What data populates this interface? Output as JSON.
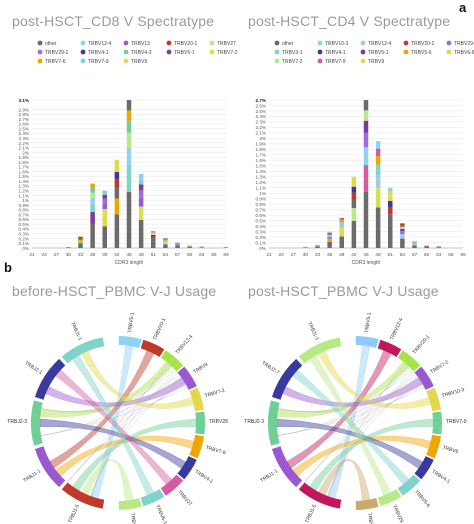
{
  "panel_a": "a",
  "panel_b": "b",
  "titles": {
    "cd8": "post-HSCT_CD8 V Spectratype",
    "cd4": "post-HSCT_CD4 V Spectratype",
    "pre": "before-HSCT_PBMC V-J Usage",
    "post": "post-HSCT_PBMC V-J Usage"
  },
  "chart_data": [
    {
      "type": "bar",
      "stacked": true,
      "title": "post-HSCT_CD8 V Spectratype",
      "xlabel": "CDR3 length",
      "ylabel": "",
      "categories": [
        "21",
        "24",
        "27",
        "30",
        "33",
        "36",
        "39",
        "42",
        "45",
        "48",
        "51",
        "54",
        "57",
        "60",
        "63",
        "66",
        "69"
      ],
      "x_ticks_shown": [
        "21",
        "24",
        "27",
        "30",
        "33",
        "36",
        "39",
        "42",
        "45",
        "48",
        "51",
        "54",
        "57",
        "60",
        "63",
        "66",
        "69"
      ],
      "y_ticks": [
        "0%",
        "0.1%",
        "0.2%",
        "0.3%",
        "0.4%",
        "0.5%",
        "0.6%",
        "0.7%",
        "0.8%",
        "0.9%",
        "1%",
        "1.1%",
        "1.2%",
        "1.3%",
        "1.4%",
        "1.5%",
        "1.6%",
        "1.7%",
        "1.8%",
        "1.9%",
        "2%",
        "2.1%",
        "2.2%",
        "2.3%",
        "2.4%",
        "2.5%",
        "2.6%",
        "2.7%",
        "2.8%",
        "2.9%",
        "3.1%"
      ],
      "ylim": [
        0,
        3.1
      ],
      "legend": [
        "other",
        "TRBV12-4",
        "TRBV13",
        "TRBV20-1",
        "TRBV27",
        "TRBV29-1",
        "TRBV4-1",
        "TRBV4-3",
        "TRBV5-1",
        "TRBV7-2",
        "TRBV7-6",
        "TRBV7-9",
        "TRBV9"
      ],
      "legend_colors": [
        "#6b6b6b",
        "#8fd3f4",
        "#9b59d0",
        "#c0392b",
        "#b8e986",
        "#a26bdb",
        "#3a3a9e",
        "#6fcf97",
        "#7d3c98",
        "#e2d84a",
        "#f0a500",
        "#7fd3c8",
        "#d4e157"
      ],
      "totals": [
        0,
        0,
        0,
        0.02,
        0.25,
        1.35,
        1.2,
        1.85,
        3.1,
        1.55,
        0.35,
        0.2,
        0.12,
        0.05,
        0.03,
        0,
        0.02
      ]
    },
    {
      "type": "bar",
      "stacked": true,
      "title": "post-HSCT_CD4 V Spectratype",
      "xlabel": "CDR3 length",
      "ylabel": "",
      "categories": [
        "21",
        "24",
        "27",
        "30",
        "33",
        "36",
        "39",
        "42",
        "45",
        "48",
        "51",
        "54",
        "57",
        "60",
        "63",
        "66",
        "69"
      ],
      "x_ticks_shown": [
        "21",
        "24",
        "27",
        "30",
        "33",
        "36",
        "39",
        "42",
        "45",
        "48",
        "51",
        "54",
        "57",
        "60",
        "63",
        "66",
        "69"
      ],
      "y_ticks": [
        "0%",
        "0.1%",
        "0.2%",
        "0.3%",
        "0.4%",
        "0.5%",
        "0.6%",
        "0.7%",
        "0.8%",
        "0.9%",
        "1%",
        "1.1%",
        "1.2%",
        "1.3%",
        "1.4%",
        "1.5%",
        "1.6%",
        "1.7%",
        "1.8%",
        "1.9%",
        "2%",
        "2.1%",
        "2.2%",
        "2.3%",
        "2.4%",
        "2.5%",
        "2.6%",
        "2.7%"
      ],
      "ylim": [
        0,
        2.7
      ],
      "legend": [
        "other",
        "TRBV10-3",
        "TRBV12-4",
        "TRBV20-1",
        "TRBV29-1",
        "TRBV3-1",
        "TRBV4-1",
        "TRBV5-1",
        "TRBV5-6",
        "TRBV6-6",
        "TRBV7-2",
        "TRBV7-9",
        "TRBV9"
      ],
      "legend_colors": [
        "#6b6b6b",
        "#8fd3f4",
        "#9fcbe8",
        "#c0392b",
        "#a26bdb",
        "#7fd3c8",
        "#3a3a9e",
        "#7d3c98",
        "#f0a500",
        "#e2d84a",
        "#b8e986",
        "#d65a9f",
        "#d4e157"
      ],
      "totals": [
        0,
        0,
        0,
        0.02,
        0.05,
        0.3,
        0.55,
        1.3,
        2.7,
        1.95,
        1.1,
        0.45,
        0.12,
        0.05,
        0.03,
        0,
        0
      ]
    }
  ],
  "chord_pre": {
    "labels_top": [
      "TRBV5-1",
      "TRBV20-1",
      "TRBV12-4",
      "TRBV9",
      "TRBV7-2",
      "TRBV28",
      "TRBV7-9",
      "TRBV4-1",
      "TRBV27",
      "TRBV6-1",
      "TRBV6-5"
    ],
    "labels_left": [
      "TRBJ1-5",
      "TRBJ1-1",
      "TRBJ2-3",
      "TRBJ2-1",
      "TRBJ1-1"
    ],
    "colors": [
      "#8fd3f4",
      "#c0392b",
      "#a9e34b",
      "#9b59d0",
      "#e2d84a",
      "#6fcf97",
      "#f0a500",
      "#3a3a9e",
      "#d65a9f",
      "#7fd3c8",
      "#b8e986",
      "#c9a96e",
      "#e57373",
      "#90caf9",
      "#aed581"
    ]
  },
  "chord_post": {
    "labels_top": [
      "TRBV5-1",
      "TRBV12-4",
      "TRBV20-1",
      "TRBV7-2",
      "TRBV10-3",
      "TRBV7-9",
      "TRBV6",
      "TRBV4-1",
      "TRBV5-6",
      "TRBV29",
      "TRBV19"
    ],
    "labels_left": [
      "TRBJ1-5",
      "TRBJ1-1",
      "TRBJ2-3",
      "TRBJ2-7",
      "TRBJ1-1"
    ],
    "colors": [
      "#90caf9",
      "#c2185b",
      "#a9e34b",
      "#9b59d0",
      "#e2d84a",
      "#6fcf97",
      "#f0a500",
      "#3a3a9e",
      "#7fd3c8",
      "#b8e986",
      "#c9a96e",
      "#e57373",
      "#7d3c98",
      "#aed581",
      "#d65a9f"
    ]
  }
}
